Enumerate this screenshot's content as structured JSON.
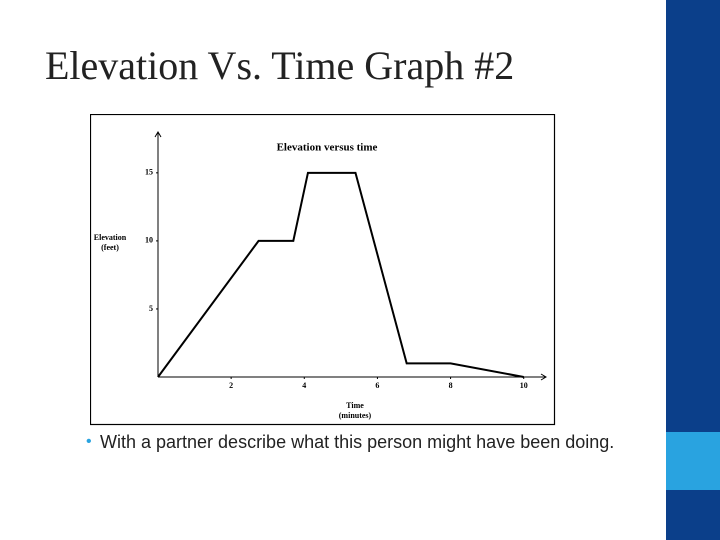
{
  "slide": {
    "title": "Elevation Vs. Time Graph #2",
    "bullet": "With a partner describe what this person might have been doing."
  },
  "chart_data": {
    "type": "line",
    "title": "Elevation versus time",
    "xlabel": "Time (minutes)",
    "ylabel": "Elevation (feet)",
    "x": [
      0,
      2.75,
      3.7,
      4.1,
      5.4,
      6.8,
      8,
      10
    ],
    "values": [
      0,
      10,
      10,
      15,
      15,
      1,
      1,
      0
    ],
    "color": "#000000",
    "xlim": [
      0,
      10.5
    ],
    "ylim": [
      0,
      18
    ],
    "xticks": [
      2,
      4,
      6,
      8,
      10
    ],
    "yticks": [
      5,
      10,
      15
    ]
  }
}
